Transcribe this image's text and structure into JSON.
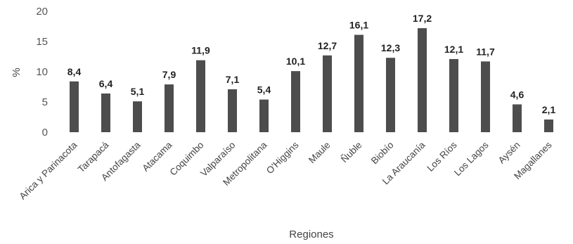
{
  "chart_data": {
    "type": "bar",
    "categories": [
      "Arica y Parinacota",
      "Tarapacá",
      "Antofagasta",
      "Atacama",
      "Coquimbo",
      "Valparaíso",
      "Metropolitana",
      "O'Higgins",
      "Maule",
      "Ñuble",
      "Biobío",
      "La Araucanía",
      "Los Ríos",
      "Los Lagos",
      "Aysén",
      "Magallanes"
    ],
    "values": [
      8.4,
      6.4,
      5.1,
      7.9,
      11.9,
      7.1,
      5.4,
      10.1,
      12.7,
      16.1,
      12.3,
      17.2,
      12.1,
      11.7,
      4.6,
      2.1
    ],
    "value_labels": [
      "8,4",
      "6,4",
      "5,1",
      "7,9",
      "11,9",
      "7,1",
      "5,4",
      "10,1",
      "12,7",
      "16,1",
      "12,3",
      "17,2",
      "12,1",
      "11,7",
      "4,6",
      "2,1"
    ],
    "xlabel": "Regiones",
    "ylabel": "%",
    "ylim": [
      0,
      20
    ],
    "yticks": [
      "0",
      "5",
      "10",
      "15",
      "20"
    ],
    "grid": false,
    "legend": "none",
    "bar_color": "#4d4d4d"
  }
}
